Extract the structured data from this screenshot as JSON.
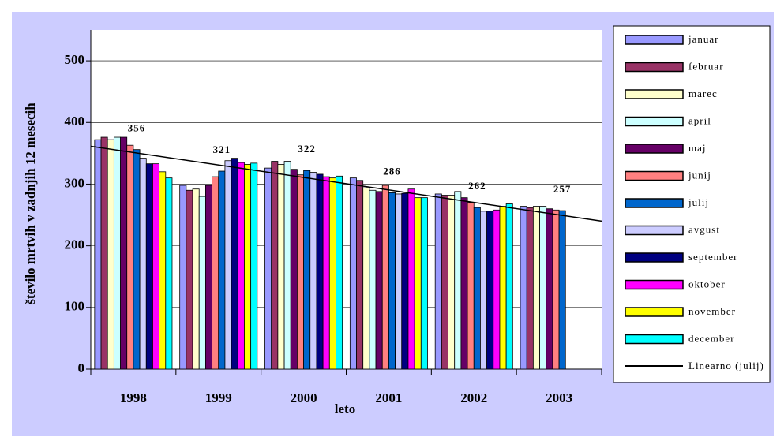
{
  "chart_data": {
    "type": "bar",
    "x_label": "leto",
    "y_label": "število mrtvih v zadnjih 12 mesecih",
    "categories": [
      "1998",
      "1999",
      "2000",
      "2001",
      "2002",
      "2003"
    ],
    "series": [
      {
        "name": "januar",
        "color": "#9999ff",
        "values": [
          372,
          298,
          326,
          310,
          284,
          264
        ]
      },
      {
        "name": "februar",
        "color": "#993366",
        "values": [
          376,
          290,
          337,
          306,
          282,
          262
        ]
      },
      {
        "name": "marec",
        "color": "#ffffcc",
        "values": [
          372,
          292,
          332,
          294,
          282,
          264
        ]
      },
      {
        "name": "april",
        "color": "#ccffff",
        "values": [
          376,
          280,
          337,
          290,
          288,
          264
        ]
      },
      {
        "name": "maj",
        "color": "#660066",
        "values": [
          376,
          298,
          324,
          288,
          278,
          260
        ]
      },
      {
        "name": "junij",
        "color": "#ff8080",
        "values": [
          363,
          312,
          315,
          298,
          270,
          258
        ]
      },
      {
        "name": "julij",
        "color": "#0066cc",
        "values": [
          356,
          321,
          322,
          286,
          262,
          257
        ]
      },
      {
        "name": "avgust",
        "color": "#ccccff",
        "values": [
          342,
          338,
          319,
          284,
          256,
          null
        ]
      },
      {
        "name": "september",
        "color": "#000080",
        "values": [
          333,
          342,
          316,
          285,
          256,
          null
        ]
      },
      {
        "name": "oktober",
        "color": "#ff00ff",
        "values": [
          333,
          335,
          312,
          292,
          258,
          null
        ]
      },
      {
        "name": "november",
        "color": "#ffff00",
        "values": [
          320,
          332,
          310,
          278,
          264,
          null
        ]
      },
      {
        "name": "december",
        "color": "#00ffff",
        "values": [
          310,
          334,
          313,
          278,
          268,
          null
        ]
      }
    ],
    "labeled_series": "julij",
    "trendline": {
      "name": "Linearno (julij)",
      "of": "julij",
      "color": "#000000"
    },
    "ylim": [
      0,
      550
    ],
    "yticks": [
      0,
      100,
      200,
      300,
      400,
      500
    ],
    "grid": true
  }
}
